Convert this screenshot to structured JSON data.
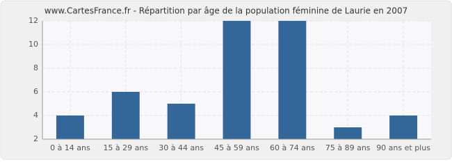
{
  "chart_data": {
    "type": "bar",
    "title": "www.CartesFrance.fr - Répartition par âge de la population féminine de Laurie en 2007",
    "categories": [
      "0 à 14 ans",
      "15 à 29 ans",
      "30 à 44 ans",
      "45 à 59 ans",
      "60 à 74 ans",
      "75 à 89 ans",
      "90 ans et plus"
    ],
    "values": [
      4,
      6,
      5,
      12,
      12,
      3,
      4
    ],
    "color": "#336699",
    "ylim": [
      2,
      12
    ],
    "yticks": [
      2,
      4,
      6,
      8,
      10,
      12
    ],
    "grid": true
  }
}
